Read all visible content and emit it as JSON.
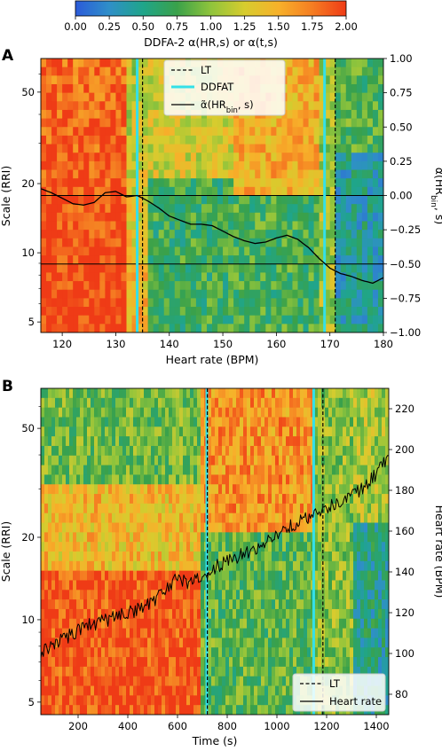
{
  "colorbar": {
    "label": "DDFA-2 α(HR,s) or α(t,s)",
    "ticks": [
      "0.00",
      "0.25",
      "0.50",
      "0.75",
      "1.00",
      "1.25",
      "1.50",
      "1.75",
      "2.00"
    ],
    "range": [
      0,
      2
    ],
    "colors": [
      "#2b5bd9",
      "#2f8fc8",
      "#1fa58a",
      "#3aa14a",
      "#8fc43c",
      "#d7cc2e",
      "#f7b12a",
      "#f57d22",
      "#ef3b16"
    ]
  },
  "chart_data": [
    {
      "type": "heatmap",
      "panel_label": "A",
      "xlabel": "Heart rate (BPM)",
      "ylabel": "Scale (RRI)",
      "y2label": "α̃(HR_bin, s)",
      "xlim": [
        116,
        180
      ],
      "ylim": [
        4.5,
        70
      ],
      "yscale": "log",
      "y2lim": [
        -1.0,
        1.0
      ],
      "x_ticks": [
        "120",
        "130",
        "140",
        "150",
        "160",
        "170",
        "180"
      ],
      "y_ticks": [
        "5",
        "10",
        "20",
        "50"
      ],
      "y2_ticks": [
        "1.00",
        "0.75",
        "0.50",
        "0.25",
        "0.00",
        "−0.25",
        "−0.50",
        "−0.75",
        "−1.00"
      ],
      "hlines_y2": [
        0.0,
        -0.5
      ],
      "legend": {
        "position": "top-center",
        "entries": [
          "LT",
          "DDFAT",
          "α̃(HR_bin, s)"
        ]
      },
      "lt_x": [
        135,
        171
      ],
      "ddfat_x": [
        134,
        169
      ],
      "series": [
        {
          "name": "α̃(HR_bin, s)",
          "x": [
            116,
            118,
            120,
            122,
            124,
            126,
            128,
            130,
            132,
            134,
            136,
            138,
            140,
            142,
            144,
            146,
            148,
            150,
            152,
            154,
            156,
            158,
            160,
            162,
            164,
            166,
            168,
            170,
            172,
            174,
            176,
            178,
            180
          ],
          "y": [
            0.05,
            0.02,
            -0.02,
            -0.06,
            -0.07,
            -0.05,
            0.02,
            0.03,
            -0.01,
            0.0,
            -0.04,
            -0.09,
            -0.15,
            -0.18,
            -0.21,
            -0.21,
            -0.22,
            -0.26,
            -0.3,
            -0.33,
            -0.35,
            -0.34,
            -0.31,
            -0.29,
            -0.32,
            -0.38,
            -0.46,
            -0.53,
            -0.57,
            -0.59,
            -0.62,
            -0.64,
            -0.6
          ]
        }
      ]
    },
    {
      "type": "heatmap",
      "panel_label": "B",
      "xlabel": "Time (s)",
      "ylabel": "Scale (RRI)",
      "y2label": "Heart rate (BPM)",
      "xlim": [
        50,
        1450
      ],
      "ylim": [
        4.5,
        70
      ],
      "yscale": "log",
      "y2lim": [
        70,
        230
      ],
      "x_ticks": [
        "200",
        "400",
        "600",
        "800",
        "1000",
        "1200",
        "1400"
      ],
      "y_ticks": [
        "5",
        "10",
        "20",
        "50"
      ],
      "y2_ticks": [
        "220",
        "200",
        "180",
        "160",
        "140",
        "120",
        "100",
        "80"
      ],
      "legend": {
        "position": "bottom-right",
        "entries": [
          "LT",
          "Heart rate"
        ]
      },
      "lt_x": [
        720,
        1185
      ],
      "ddfat_x": [
        718,
        1148
      ],
      "series": [
        {
          "name": "Heart rate",
          "x": [
            50,
            100,
            150,
            200,
            250,
            300,
            350,
            400,
            450,
            500,
            550,
            600,
            650,
            700,
            750,
            800,
            850,
            900,
            950,
            1000,
            1050,
            1100,
            1150,
            1200,
            1250,
            1300,
            1350,
            1400,
            1450
          ],
          "y": [
            100,
            104,
            108,
            111,
            114,
            116,
            118,
            120,
            122,
            125,
            131,
            137,
            134,
            138,
            142,
            146,
            148,
            150,
            154,
            158,
            162,
            165,
            168,
            171,
            174,
            178,
            181,
            188,
            197
          ]
        }
      ]
    }
  ]
}
